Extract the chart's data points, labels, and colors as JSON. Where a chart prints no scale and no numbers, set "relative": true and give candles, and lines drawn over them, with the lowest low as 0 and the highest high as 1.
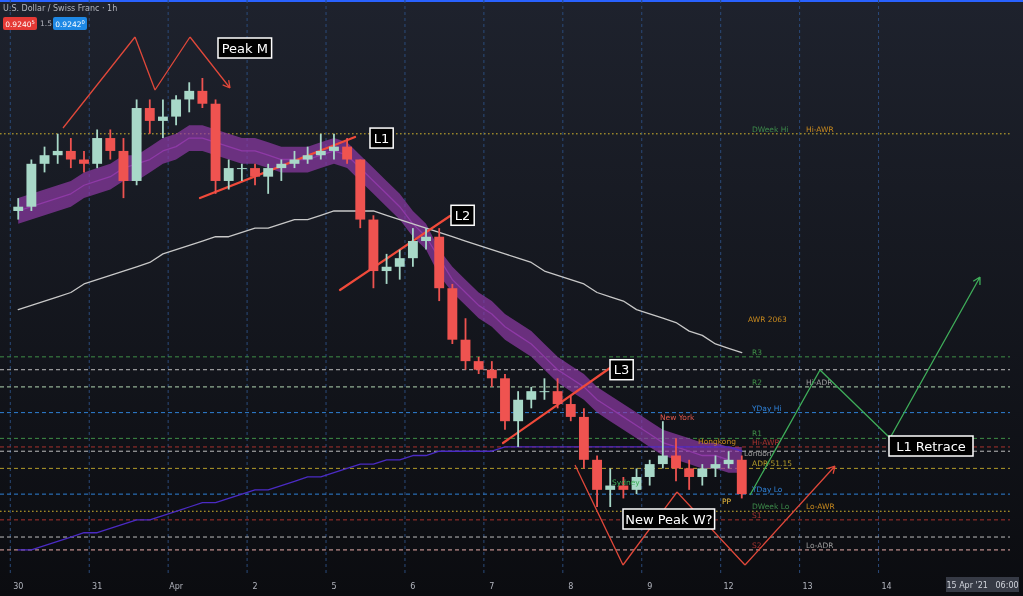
{
  "chart_data": {
    "type": "candlestick",
    "title": "U.S. Dollar / Swiss Franc · 1h",
    "relative": true,
    "grid": "x",
    "categories": [
      "30",
      null,
      null,
      null,
      null,
      null,
      "31",
      null,
      null,
      null,
      null,
      null,
      "Apr",
      null,
      null,
      null,
      null,
      null,
      "2",
      null,
      null,
      null,
      null,
      null,
      "5",
      null,
      null,
      null,
      null,
      null,
      "6",
      null,
      null,
      null,
      null,
      null,
      "7",
      null,
      null,
      null,
      null,
      null,
      "8",
      null,
      null,
      null,
      null,
      null,
      "9",
      null,
      null,
      null,
      null,
      null,
      "12",
      null,
      null,
      null,
      null,
      null,
      "13",
      null,
      null,
      null,
      null,
      null,
      "14",
      null,
      null,
      null,
      null,
      null,
      null,
      null
    ],
    "ohlc": [
      [
        0.69,
        0.72,
        0.67,
        0.7
      ],
      [
        0.7,
        0.81,
        0.69,
        0.8
      ],
      [
        0.8,
        0.84,
        0.78,
        0.82
      ],
      [
        0.82,
        0.87,
        0.8,
        0.83
      ],
      [
        0.83,
        0.86,
        0.79,
        0.81
      ],
      [
        0.81,
        0.83,
        0.78,
        0.8
      ],
      [
        0.8,
        0.88,
        0.79,
        0.86
      ],
      [
        0.86,
        0.88,
        0.81,
        0.83
      ],
      [
        0.83,
        0.86,
        0.72,
        0.76
      ],
      [
        0.76,
        0.95,
        0.75,
        0.93
      ],
      [
        0.93,
        0.95,
        0.87,
        0.9
      ],
      [
        0.9,
        0.95,
        0.86,
        0.91
      ],
      [
        0.91,
        0.96,
        0.89,
        0.95
      ],
      [
        0.95,
        0.99,
        0.92,
        0.97
      ],
      [
        0.97,
        1.0,
        0.93,
        0.94
      ],
      [
        0.94,
        0.95,
        0.73,
        0.76
      ],
      [
        0.76,
        0.81,
        0.74,
        0.79
      ],
      [
        0.79,
        0.8,
        0.76,
        0.79
      ],
      [
        0.79,
        0.8,
        0.75,
        0.77
      ],
      [
        0.77,
        0.8,
        0.73,
        0.79
      ],
      [
        0.79,
        0.81,
        0.76,
        0.8
      ],
      [
        0.8,
        0.83,
        0.79,
        0.81
      ],
      [
        0.81,
        0.84,
        0.8,
        0.82
      ],
      [
        0.82,
        0.87,
        0.81,
        0.83
      ],
      [
        0.83,
        0.87,
        0.81,
        0.84
      ],
      [
        0.84,
        0.86,
        0.8,
        0.81
      ],
      [
        0.81,
        0.81,
        0.65,
        0.67
      ],
      [
        0.67,
        0.68,
        0.51,
        0.55
      ],
      [
        0.55,
        0.59,
        0.52,
        0.56
      ],
      [
        0.56,
        0.6,
        0.53,
        0.58
      ],
      [
        0.58,
        0.65,
        0.56,
        0.62
      ],
      [
        0.62,
        0.65,
        0.6,
        0.63
      ],
      [
        0.63,
        0.65,
        0.48,
        0.51
      ],
      [
        0.51,
        0.52,
        0.38,
        0.39
      ],
      [
        0.39,
        0.44,
        0.32,
        0.34
      ],
      [
        0.34,
        0.35,
        0.31,
        0.32
      ],
      [
        0.32,
        0.34,
        0.28,
        0.3
      ],
      [
        0.3,
        0.31,
        0.18,
        0.2
      ],
      [
        0.2,
        0.27,
        0.14,
        0.25
      ],
      [
        0.25,
        0.28,
        0.23,
        0.27
      ],
      [
        0.27,
        0.3,
        0.25,
        0.27
      ],
      [
        0.27,
        0.3,
        0.23,
        0.24
      ],
      [
        0.24,
        0.26,
        0.2,
        0.21
      ],
      [
        0.21,
        0.23,
        0.09,
        0.11
      ],
      [
        0.11,
        0.12,
        0.0,
        0.04
      ],
      [
        0.04,
        0.09,
        0.0,
        0.05
      ],
      [
        0.05,
        0.07,
        0.02,
        0.04
      ],
      [
        0.04,
        0.09,
        0.03,
        0.07
      ],
      [
        0.07,
        0.11,
        0.05,
        0.1
      ],
      [
        0.1,
        0.2,
        0.09,
        0.12
      ],
      [
        0.12,
        0.16,
        0.06,
        0.09
      ],
      [
        0.09,
        0.11,
        0.04,
        0.07
      ],
      [
        0.07,
        0.1,
        0.05,
        0.09
      ],
      [
        0.09,
        0.12,
        0.07,
        0.1
      ],
      [
        0.1,
        0.13,
        0.09,
        0.11
      ],
      [
        0.11,
        0.12,
        0.02,
        0.03
      ],
      null,
      null,
      null,
      null,
      null,
      null,
      null,
      null,
      null,
      null,
      null,
      null,
      null,
      null,
      null,
      null,
      null,
      null
    ],
    "series": [
      {
        "type": "line",
        "color": "#8e3aa6",
        "values": [
          0.69,
          0.7,
          0.71,
          0.72,
          0.73,
          0.75,
          0.76,
          0.77,
          0.79,
          null,
          0.81,
          0.83,
          0.84,
          0.86,
          0.86,
          null,
          0.84,
          0.83,
          0.83,
          0.82,
          0.81,
          0.81,
          0.81,
          0.82,
          0.83,
          0.82,
          null,
          0.76,
          0.73,
          0.7,
          0.66,
          0.63,
          null,
          0.53,
          0.5,
          0.47,
          0.45,
          0.42,
          0.4,
          0.38,
          0.35,
          0.32,
          0.3,
          0.28,
          0.25,
          0.23,
          0.21,
          0.19,
          0.17,
          0.15,
          0.14,
          0.13,
          0.12,
          0.12,
          0.11,
          null,
          null,
          null,
          null,
          null,
          null,
          null,
          null,
          null,
          null,
          null,
          null,
          null,
          null,
          null,
          null,
          null,
          null,
          null
        ],
        "lower": [
          0.66,
          0.67,
          0.68,
          0.69,
          0.7,
          0.72,
          0.73,
          0.74,
          0.76,
          0.76,
          0.78,
          0.8,
          0.81,
          0.83,
          0.83,
          0.82,
          0.81,
          0.8,
          0.8,
          0.79,
          0.78,
          0.78,
          0.78,
          0.79,
          0.8,
          0.79,
          0.76,
          0.73,
          0.7,
          0.67,
          0.63,
          0.6,
          0.54,
          0.5,
          0.47,
          0.44,
          0.42,
          0.39,
          0.37,
          0.35,
          0.32,
          0.29,
          0.27,
          0.25,
          0.22,
          0.2,
          0.18,
          0.16,
          0.14,
          0.12,
          0.11,
          0.1,
          0.09,
          0.09,
          0.08,
          0.08,
          null,
          null,
          null,
          null,
          null,
          null,
          null,
          null,
          null,
          null,
          null,
          null,
          null,
          null,
          null,
          null,
          null,
          null
        ],
        "upper": [
          0.72,
          0.73,
          0.74,
          0.75,
          0.76,
          0.78,
          0.79,
          0.8,
          0.82,
          0.82,
          0.84,
          0.86,
          0.87,
          0.89,
          0.89,
          0.88,
          0.87,
          0.86,
          0.86,
          0.85,
          0.84,
          0.84,
          0.84,
          0.85,
          0.86,
          0.85,
          0.82,
          0.79,
          0.76,
          0.73,
          0.69,
          0.66,
          0.6,
          0.56,
          0.53,
          0.5,
          0.48,
          0.45,
          0.43,
          0.41,
          0.38,
          0.35,
          0.33,
          0.31,
          0.28,
          0.26,
          0.24,
          0.22,
          0.2,
          0.18,
          0.17,
          0.16,
          0.15,
          0.15,
          0.14,
          0.14,
          null,
          null,
          null,
          null,
          null,
          null,
          null,
          null,
          null,
          null,
          null,
          null,
          null,
          null,
          null,
          null,
          null,
          null
        ]
      },
      {
        "type": "line",
        "color": "#c8c8c8",
        "values": [
          0.46,
          0.47,
          0.48,
          0.49,
          0.5,
          0.52,
          0.53,
          0.54,
          0.55,
          0.56,
          0.57,
          0.59,
          0.6,
          0.61,
          0.62,
          0.63,
          0.63,
          0.64,
          0.65,
          0.65,
          0.66,
          0.67,
          0.67,
          0.68,
          0.69,
          0.69,
          null,
          0.69,
          0.68,
          0.67,
          0.66,
          0.65,
          0.64,
          0.63,
          0.62,
          0.61,
          0.6,
          0.59,
          0.58,
          0.57,
          0.55,
          0.54,
          0.53,
          0.52,
          0.5,
          0.49,
          0.48,
          0.46,
          0.45,
          0.44,
          0.43,
          0.41,
          0.4,
          0.38,
          0.37,
          0.36,
          null,
          null,
          null,
          null,
          null,
          null,
          null,
          null,
          null,
          null,
          null,
          null,
          null,
          null,
          null,
          null,
          null,
          null
        ]
      },
      {
        "type": "line",
        "color": "#4b2bc4",
        "values": [
          -0.1,
          -0.1,
          -0.09,
          -0.08,
          -0.07,
          -0.06,
          -0.06,
          -0.05,
          -0.04,
          -0.03,
          -0.03,
          -0.02,
          -0.01,
          0.0,
          0.01,
          0.01,
          0.02,
          0.03,
          0.04,
          0.04,
          0.05,
          0.06,
          0.07,
          0.07,
          0.08,
          0.09,
          0.1,
          0.1,
          0.11,
          0.11,
          0.12,
          0.12,
          0.13,
          0.13,
          0.13,
          0.13,
          0.13,
          0.14,
          0.14,
          0.14,
          0.14,
          0.14,
          0.14,
          null,
          0.14,
          0.14,
          0.14,
          0.14,
          0.14,
          0.14,
          0.14,
          0.14,
          0.14,
          0.14,
          0.14,
          0.13,
          null,
          null,
          null,
          null,
          null,
          null,
          null,
          null,
          null,
          null,
          null,
          null,
          null,
          null,
          null,
          null,
          null,
          null
        ]
      }
    ],
    "ref_lines": [
      {
        "axis": "y",
        "value": 0.87,
        "label": "DWeek Hi",
        "color": "#3d8b4a",
        "line_style": "dotted"
      },
      {
        "axis": "y",
        "value": 0.87,
        "label": "Hi-AWR",
        "color": "#c98a1e",
        "line_style": "dotted"
      },
      {
        "axis": "y",
        "value": 0.35,
        "label": "R3",
        "color": "#3f8f47",
        "line_style": "dashed"
      },
      {
        "axis": "y",
        "value": 0.32,
        "label": null,
        "color": "#bdbdbd",
        "line_style": "dashed"
      },
      {
        "axis": "y",
        "value": 0.28,
        "label": "R2",
        "color": "#3f8f47",
        "line_style": "dashed"
      },
      {
        "axis": "y",
        "value": 0.28,
        "label": "Hi-ADR",
        "color": "#9e9e9e",
        "line_style": "dashed"
      },
      {
        "axis": "y",
        "value": 0.22,
        "label": "YDay Hi",
        "color": "#2f80d6",
        "line_style": "dashed"
      },
      {
        "axis": "y",
        "value": 0.16,
        "label": "R1",
        "color": "#3f8f47",
        "line_style": "dashed"
      },
      {
        "axis": "y",
        "value": 0.14,
        "label": "Hi-AWR",
        "color": "#a8322e",
        "line_style": "dashed"
      },
      {
        "axis": "y",
        "value": 0.13,
        "label": null,
        "color": "#bdbdbd",
        "line_style": "dashed"
      },
      {
        "axis": "y",
        "value": 0.09,
        "label": "ADR-51.15",
        "color": "#b39b2a",
        "line_style": "dashed"
      },
      {
        "axis": "y",
        "value": 0.03,
        "label": "YDay Lo",
        "color": "#2f80d6",
        "line_style": "dashed"
      },
      {
        "axis": "y",
        "value": -0.01,
        "label": "DWeek Lo",
        "color": "#3d8b4a",
        "line_style": "dotted"
      },
      {
        "axis": "y",
        "value": -0.01,
        "label": "Lo-AWR",
        "color": "#c98a1e",
        "line_style": "dotted"
      },
      {
        "axis": "y",
        "value": -0.03,
        "label": "S1",
        "color": "#a8322e",
        "line_style": "dashed"
      },
      {
        "axis": "y",
        "value": -0.07,
        "label": null,
        "color": "#bdbdbd",
        "line_style": "dashed"
      },
      {
        "axis": "y",
        "value": -0.1,
        "label": "S2",
        "color": "#a8322e",
        "line_style": "dashed"
      },
      {
        "axis": "y",
        "value": -0.1,
        "label": "Lo-ADR",
        "color": "#9e9e9e",
        "line_style": "dashed"
      }
    ],
    "annotations": [
      "0.9240$^{5}$",
      "1.5",
      "0.9242$^{0}$",
      "Peak M",
      {
        "text": "L1",
        "y": 0.86
      },
      {
        "text": "L2",
        "y": 0.68
      },
      {
        "text": "L3",
        "y": 0.32
      },
      "New Peak W?",
      "L1 Retrace",
      "AWR 2063",
      "New York",
      "Hongkong",
      "Sydney",
      "London",
      "PP",
      "15 Apr '21   06:00"
    ]
  }
}
